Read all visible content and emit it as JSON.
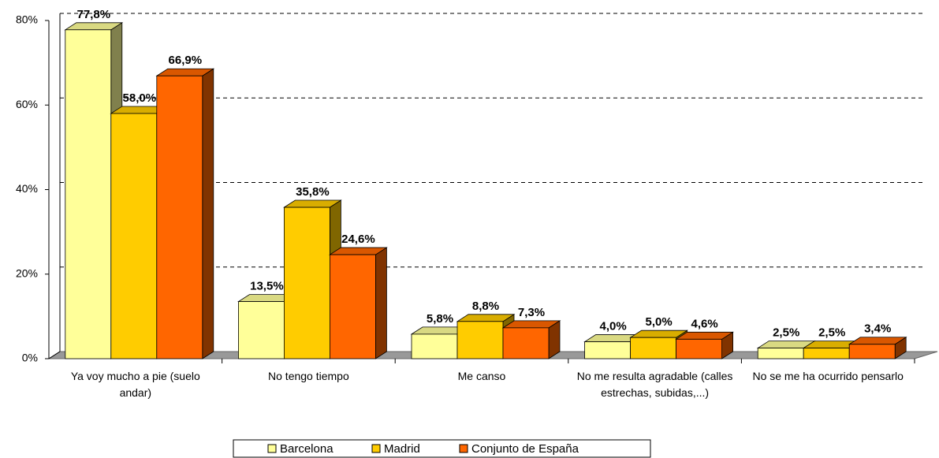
{
  "chart_data": {
    "type": "bar3d",
    "categories": [
      "Ya voy mucho a pie (suelo andar)",
      "No tengo tiempo",
      "Me canso",
      "No me resulta agradable (calles estrechas, subidas,...)",
      "No se me ha ocurrido pensarlo"
    ],
    "series": [
      {
        "name": "Barcelona",
        "color": "#FFFF99",
        "values": [
          77.8,
          13.5,
          5.8,
          4.0,
          2.5
        ],
        "value_labels": [
          "77,8%",
          "13,5%",
          "5,8%",
          "4,0%",
          "2,5%"
        ]
      },
      {
        "name": "Madrid",
        "color": "#FFCC00",
        "values": [
          58.0,
          35.8,
          8.8,
          5.0,
          2.5
        ],
        "value_labels": [
          "58,0%",
          "35,8%",
          "8,8%",
          "5,0%",
          "2,5%"
        ]
      },
      {
        "name": "Conjunto de España",
        "color": "#FF6600",
        "values": [
          66.9,
          24.6,
          7.3,
          4.6,
          3.4
        ],
        "value_labels": [
          "66,9%",
          "24,6%",
          "7,3%",
          "4,6%",
          "3,4%"
        ]
      }
    ],
    "ylim": [
      0,
      80
    ],
    "yticks": [
      {
        "value": 0,
        "label": "0%"
      },
      {
        "value": 20,
        "label": "20%"
      },
      {
        "value": 40,
        "label": "40%"
      },
      {
        "value": 60,
        "label": "60%"
      },
      {
        "value": 80,
        "label": "80%"
      }
    ],
    "grid": true,
    "legend": "bottom"
  }
}
